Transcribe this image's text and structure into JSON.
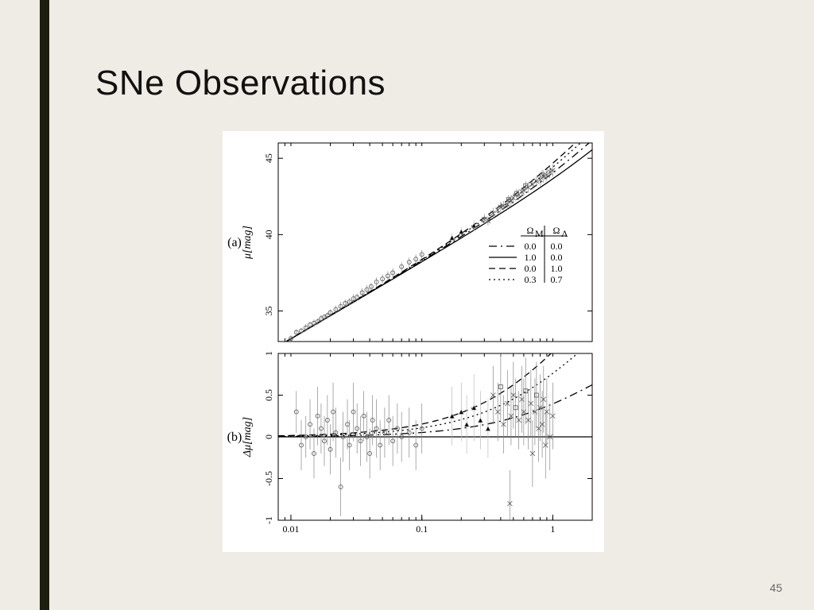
{
  "slide": {
    "title": "SNe Observations",
    "page_number": "45",
    "background_color": "#eeece4",
    "accent_bar_color": "#1e1e10"
  },
  "figure": {
    "background_color": "#ffffff",
    "xaxis": {
      "label": "",
      "scale": "log",
      "min": 0.008,
      "max": 2.0,
      "major_ticks": [
        0.01,
        0.1,
        1
      ],
      "tick_labels": [
        "0.01",
        "0.1",
        "1"
      ],
      "fontsize": 12
    },
    "panel_a": {
      "label": "(a)",
      "ylabel": "μ[mag]",
      "ylim": [
        33,
        46
      ],
      "yticks": [
        35,
        40,
        45
      ],
      "ytick_labels": [
        "35",
        "40",
        "45"
      ],
      "curves": [
        {
          "style": "dashdot",
          "Omega_M": "0.0",
          "Omega_L": "0.0"
        },
        {
          "style": "solid",
          "Omega_M": "1.0",
          "Omega_L": "0.0"
        },
        {
          "style": "dash",
          "Omega_M": "0.0",
          "Omega_L": "1.0"
        },
        {
          "style": "dot",
          "Omega_M": "0.3",
          "Omega_L": "0.7"
        }
      ],
      "legend": {
        "header_left": "Ω",
        "header_left_sub": "M",
        "header_right": "Ω",
        "header_right_sub": "Λ"
      },
      "data": [
        {
          "z": 0.01,
          "mu": 33.2,
          "e": 0.2,
          "m": "o"
        },
        {
          "z": 0.011,
          "mu": 33.6,
          "e": 0.2,
          "m": "o"
        },
        {
          "z": 0.012,
          "mu": 33.7,
          "e": 0.2,
          "m": "o"
        },
        {
          "z": 0.013,
          "mu": 33.9,
          "e": 0.25,
          "m": "o"
        },
        {
          "z": 0.014,
          "mu": 34.1,
          "e": 0.2,
          "m": "o"
        },
        {
          "z": 0.015,
          "mu": 34.2,
          "e": 0.25,
          "m": "o"
        },
        {
          "z": 0.016,
          "mu": 34.3,
          "e": 0.2,
          "m": "o"
        },
        {
          "z": 0.017,
          "mu": 34.5,
          "e": 0.25,
          "m": "o"
        },
        {
          "z": 0.018,
          "mu": 34.6,
          "e": 0.2,
          "m": "o"
        },
        {
          "z": 0.019,
          "mu": 34.7,
          "e": 0.2,
          "m": "o"
        },
        {
          "z": 0.02,
          "mu": 34.9,
          "e": 0.2,
          "m": "o"
        },
        {
          "z": 0.022,
          "mu": 35.1,
          "e": 0.25,
          "m": "o"
        },
        {
          "z": 0.024,
          "mu": 35.3,
          "e": 0.3,
          "m": "o"
        },
        {
          "z": 0.026,
          "mu": 35.5,
          "e": 0.25,
          "m": "o"
        },
        {
          "z": 0.028,
          "mu": 35.6,
          "e": 0.25,
          "m": "o"
        },
        {
          "z": 0.03,
          "mu": 35.8,
          "e": 0.3,
          "m": "o"
        },
        {
          "z": 0.032,
          "mu": 35.9,
          "e": 0.25,
          "m": "o"
        },
        {
          "z": 0.035,
          "mu": 36.2,
          "e": 0.3,
          "m": "o"
        },
        {
          "z": 0.038,
          "mu": 36.4,
          "e": 0.3,
          "m": "o"
        },
        {
          "z": 0.041,
          "mu": 36.6,
          "e": 0.25,
          "m": "o"
        },
        {
          "z": 0.045,
          "mu": 36.9,
          "e": 0.3,
          "m": "o"
        },
        {
          "z": 0.05,
          "mu": 37.1,
          "e": 0.3,
          "m": "o"
        },
        {
          "z": 0.055,
          "mu": 37.3,
          "e": 0.3,
          "m": "o"
        },
        {
          "z": 0.06,
          "mu": 37.5,
          "e": 0.3,
          "m": "o"
        },
        {
          "z": 0.07,
          "mu": 37.9,
          "e": 0.3,
          "m": "o"
        },
        {
          "z": 0.08,
          "mu": 38.2,
          "e": 0.3,
          "m": "o"
        },
        {
          "z": 0.09,
          "mu": 38.4,
          "e": 0.3,
          "m": "o"
        },
        {
          "z": 0.1,
          "mu": 38.7,
          "e": 0.3,
          "m": "o"
        },
        {
          "z": 0.17,
          "mu": 39.8,
          "e": 0.3,
          "m": "t"
        },
        {
          "z": 0.2,
          "mu": 40.2,
          "e": 0.3,
          "m": "t"
        },
        {
          "z": 0.25,
          "mu": 40.6,
          "e": 0.35,
          "m": "t"
        },
        {
          "z": 0.3,
          "mu": 41.0,
          "e": 0.35,
          "m": "x"
        },
        {
          "z": 0.32,
          "mu": 40.9,
          "e": 0.3,
          "m": "x"
        },
        {
          "z": 0.35,
          "mu": 41.4,
          "e": 0.35,
          "m": "x"
        },
        {
          "z": 0.38,
          "mu": 41.6,
          "e": 0.3,
          "m": "x"
        },
        {
          "z": 0.4,
          "mu": 41.8,
          "e": 0.35,
          "m": "x"
        },
        {
          "z": 0.42,
          "mu": 41.9,
          "e": 0.3,
          "m": "x"
        },
        {
          "z": 0.45,
          "mu": 42.0,
          "e": 0.35,
          "m": "x"
        },
        {
          "z": 0.46,
          "mu": 42.3,
          "e": 0.3,
          "m": "s"
        },
        {
          "z": 0.48,
          "mu": 42.2,
          "e": 0.35,
          "m": "x"
        },
        {
          "z": 0.5,
          "mu": 42.4,
          "e": 0.35,
          "m": "x"
        },
        {
          "z": 0.53,
          "mu": 42.7,
          "e": 0.3,
          "m": "s"
        },
        {
          "z": 0.55,
          "mu": 42.6,
          "e": 0.35,
          "m": "x"
        },
        {
          "z": 0.58,
          "mu": 42.8,
          "e": 0.3,
          "m": "x"
        },
        {
          "z": 0.6,
          "mu": 42.9,
          "e": 0.35,
          "m": "x"
        },
        {
          "z": 0.62,
          "mu": 43.2,
          "e": 0.3,
          "m": "s"
        },
        {
          "z": 0.65,
          "mu": 43.1,
          "e": 0.35,
          "m": "x"
        },
        {
          "z": 0.7,
          "mu": 43.3,
          "e": 0.35,
          "m": "x"
        },
        {
          "z": 0.75,
          "mu": 43.5,
          "e": 0.35,
          "m": "x"
        },
        {
          "z": 0.8,
          "mu": 43.6,
          "e": 0.4,
          "m": "x"
        },
        {
          "z": 0.83,
          "mu": 43.9,
          "e": 0.35,
          "m": "s"
        },
        {
          "z": 0.85,
          "mu": 43.8,
          "e": 0.4,
          "m": "x"
        },
        {
          "z": 0.9,
          "mu": 43.9,
          "e": 0.4,
          "m": "x"
        },
        {
          "z": 0.95,
          "mu": 44.1,
          "e": 0.4,
          "m": "x"
        },
        {
          "z": 1.0,
          "mu": 44.2,
          "e": 0.4,
          "m": "x"
        }
      ]
    },
    "panel_b": {
      "label": "(b)",
      "ylabel": "Δμ[mag]",
      "ylim": [
        -1,
        1
      ],
      "yticks": [
        -1,
        -0.5,
        0,
        0.5,
        1
      ],
      "ytick_labels": [
        "-1",
        "-0.5",
        "0",
        "0.5",
        "1"
      ],
      "data": [
        {
          "z": 0.011,
          "d": 0.3,
          "e": 0.25,
          "m": "o"
        },
        {
          "z": 0.012,
          "d": -0.1,
          "e": 0.3,
          "m": "o"
        },
        {
          "z": 0.013,
          "d": 0.0,
          "e": 0.25,
          "m": "o"
        },
        {
          "z": 0.014,
          "d": 0.15,
          "e": 0.3,
          "m": "o"
        },
        {
          "z": 0.015,
          "d": -0.2,
          "e": 0.3,
          "m": "o"
        },
        {
          "z": 0.016,
          "d": 0.25,
          "e": 0.35,
          "m": "o"
        },
        {
          "z": 0.017,
          "d": 0.1,
          "e": 0.3,
          "m": "o"
        },
        {
          "z": 0.018,
          "d": -0.05,
          "e": 0.3,
          "m": "o"
        },
        {
          "z": 0.019,
          "d": 0.2,
          "e": 0.3,
          "m": "o"
        },
        {
          "z": 0.02,
          "d": -0.15,
          "e": 0.3,
          "m": "o"
        },
        {
          "z": 0.021,
          "d": 0.3,
          "e": 0.35,
          "m": "o"
        },
        {
          "z": 0.022,
          "d": 0.05,
          "e": 0.3,
          "m": "o"
        },
        {
          "z": 0.024,
          "d": -0.6,
          "e": 0.35,
          "m": "o"
        },
        {
          "z": 0.025,
          "d": 0.0,
          "e": 0.3,
          "m": "o"
        },
        {
          "z": 0.027,
          "d": 0.15,
          "e": 0.3,
          "m": "o"
        },
        {
          "z": 0.028,
          "d": -0.1,
          "e": 0.3,
          "m": "o"
        },
        {
          "z": 0.03,
          "d": 0.3,
          "e": 0.35,
          "m": "o"
        },
        {
          "z": 0.032,
          "d": 0.1,
          "e": 0.3,
          "m": "o"
        },
        {
          "z": 0.034,
          "d": -0.05,
          "e": 0.3,
          "m": "o"
        },
        {
          "z": 0.036,
          "d": 0.25,
          "e": 0.3,
          "m": "o"
        },
        {
          "z": 0.038,
          "d": 0.0,
          "e": 0.3,
          "m": "o"
        },
        {
          "z": 0.04,
          "d": -0.2,
          "e": 0.3,
          "m": "o"
        },
        {
          "z": 0.042,
          "d": 0.2,
          "e": 0.3,
          "m": "o"
        },
        {
          "z": 0.045,
          "d": 0.1,
          "e": 0.35,
          "m": "o"
        },
        {
          "z": 0.048,
          "d": -0.1,
          "e": 0.3,
          "m": "o"
        },
        {
          "z": 0.052,
          "d": 0.05,
          "e": 0.3,
          "m": "o"
        },
        {
          "z": 0.056,
          "d": 0.2,
          "e": 0.3,
          "m": "o"
        },
        {
          "z": 0.06,
          "d": -0.05,
          "e": 0.3,
          "m": "o"
        },
        {
          "z": 0.065,
          "d": 0.1,
          "e": 0.3,
          "m": "o"
        },
        {
          "z": 0.07,
          "d": 0.0,
          "e": 0.3,
          "m": "o"
        },
        {
          "z": 0.08,
          "d": 0.05,
          "e": 0.3,
          "m": "o"
        },
        {
          "z": 0.09,
          "d": -0.1,
          "e": 0.3,
          "m": "o"
        },
        {
          "z": 0.1,
          "d": 0.1,
          "e": 0.3,
          "m": "o"
        },
        {
          "z": 0.17,
          "d": 0.25,
          "e": 0.35,
          "m": "t"
        },
        {
          "z": 0.2,
          "d": 0.3,
          "e": 0.35,
          "m": "t"
        },
        {
          "z": 0.22,
          "d": 0.15,
          "e": 0.35,
          "m": "t"
        },
        {
          "z": 0.25,
          "d": 0.35,
          "e": 0.4,
          "m": "t"
        },
        {
          "z": 0.28,
          "d": 0.2,
          "e": 0.35,
          "m": "t"
        },
        {
          "z": 0.32,
          "d": 0.1,
          "e": 0.35,
          "m": "t"
        },
        {
          "z": 0.35,
          "d": 0.5,
          "e": 0.35,
          "m": "x"
        },
        {
          "z": 0.38,
          "d": 0.3,
          "e": 0.35,
          "m": "x"
        },
        {
          "z": 0.4,
          "d": 0.6,
          "e": 0.4,
          "m": "s"
        },
        {
          "z": 0.42,
          "d": 0.15,
          "e": 0.35,
          "m": "x"
        },
        {
          "z": 0.45,
          "d": 0.4,
          "e": 0.4,
          "m": "x"
        },
        {
          "z": 0.47,
          "d": -0.8,
          "e": 0.4,
          "m": "x"
        },
        {
          "z": 0.48,
          "d": 0.25,
          "e": 0.35,
          "m": "x"
        },
        {
          "z": 0.5,
          "d": 0.5,
          "e": 0.4,
          "m": "x"
        },
        {
          "z": 0.52,
          "d": 0.35,
          "e": 0.35,
          "m": "s"
        },
        {
          "z": 0.55,
          "d": 0.2,
          "e": 0.35,
          "m": "x"
        },
        {
          "z": 0.58,
          "d": 0.45,
          "e": 0.4,
          "m": "x"
        },
        {
          "z": 0.6,
          "d": 0.3,
          "e": 0.4,
          "m": "x"
        },
        {
          "z": 0.62,
          "d": 0.55,
          "e": 0.4,
          "m": "s"
        },
        {
          "z": 0.65,
          "d": 0.2,
          "e": 0.35,
          "m": "x"
        },
        {
          "z": 0.68,
          "d": 0.4,
          "e": 0.4,
          "m": "x"
        },
        {
          "z": 0.7,
          "d": -0.2,
          "e": 0.4,
          "m": "x"
        },
        {
          "z": 0.73,
          "d": 0.3,
          "e": 0.4,
          "m": "x"
        },
        {
          "z": 0.75,
          "d": 0.5,
          "e": 0.4,
          "m": "s"
        },
        {
          "z": 0.78,
          "d": 0.1,
          "e": 0.4,
          "m": "x"
        },
        {
          "z": 0.8,
          "d": 0.35,
          "e": 0.4,
          "m": "x"
        },
        {
          "z": 0.83,
          "d": 0.15,
          "e": 0.4,
          "m": "x"
        },
        {
          "z": 0.85,
          "d": 0.45,
          "e": 0.4,
          "m": "x"
        },
        {
          "z": 0.88,
          "d": -0.1,
          "e": 0.4,
          "m": "x"
        },
        {
          "z": 0.9,
          "d": 0.3,
          "e": 0.4,
          "m": "x"
        },
        {
          "z": 0.95,
          "d": 0.0,
          "e": 0.4,
          "m": "x"
        },
        {
          "z": 1.0,
          "d": 0.25,
          "e": 0.4,
          "m": "x"
        }
      ]
    }
  }
}
